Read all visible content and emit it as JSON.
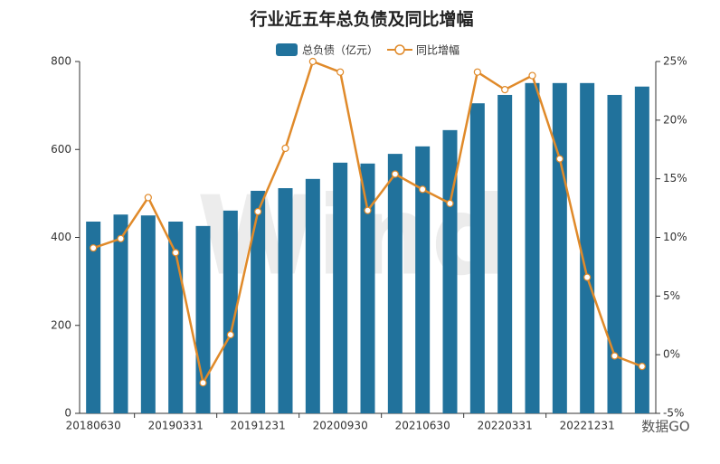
{
  "chart_data": {
    "type": "bar-line",
    "title": "行业近五年总负债及同比增幅",
    "categories": [
      "20180630",
      null,
      null,
      "20190331",
      null,
      null,
      "20191231",
      null,
      null,
      "20200930",
      null,
      null,
      "20210630",
      null,
      null,
      "20220331",
      null,
      null,
      "20221231",
      null,
      null
    ],
    "series": [
      {
        "name": "总负债（亿元）",
        "type": "bar",
        "color": "#21729c",
        "values": [
          436,
          452,
          450,
          436,
          426,
          461,
          506,
          512,
          533,
          570,
          568,
          590,
          607,
          644,
          705,
          724,
          751,
          751,
          751,
          724,
          743
        ]
      },
      {
        "name": "同比增幅",
        "type": "line",
        "axis": "y2",
        "color": "#e08a2a",
        "values": [
          9.1,
          9.9,
          13.4,
          8.7,
          -2.4,
          1.7,
          12.2,
          17.6,
          25.0,
          24.1,
          12.3,
          15.4,
          14.1,
          12.9,
          24.1,
          22.6,
          23.8,
          16.7,
          6.6,
          -0.1,
          -1.0
        ]
      }
    ],
    "ylim": [
      0,
      800
    ],
    "yticks": [
      0,
      200,
      400,
      600,
      800
    ],
    "y2lim": [
      -5,
      25
    ],
    "y2ticks": [
      {
        "value": -5,
        "label": "-5%"
      },
      {
        "value": 0,
        "label": "0%"
      },
      {
        "value": 5,
        "label": "5%"
      },
      {
        "value": 10,
        "label": "10%"
      },
      {
        "value": 15,
        "label": "15%"
      },
      {
        "value": 20,
        "label": "20%"
      },
      {
        "value": 25,
        "label": "25%"
      }
    ],
    "watermark": "Wind",
    "footer": "数据GO"
  }
}
